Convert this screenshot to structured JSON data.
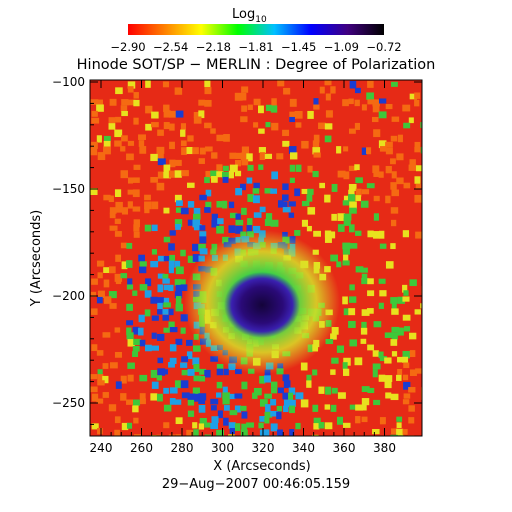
{
  "colorbar": {
    "label_base": "Log",
    "label_sub": "10",
    "tick_labels": [
      "−2.90",
      "−2.54",
      "−2.18",
      "−1.81",
      "−1.45",
      "−1.09",
      "−0.72"
    ],
    "gradient": [
      "#ff0000",
      "#ff8000",
      "#ffff00",
      "#00ff00",
      "#00c0ff",
      "#0000ff",
      "#400080",
      "#000000"
    ]
  },
  "title": "Hinode SOT/SP − MERLIN : Degree of Polarization",
  "x_axis": {
    "label": "X (Arcseconds)",
    "tick_labels": [
      "240",
      "260",
      "280",
      "300",
      "320",
      "340",
      "360",
      "380"
    ]
  },
  "y_axis": {
    "label": "Y (Arcseconds)",
    "tick_labels": [
      "−100",
      "−150",
      "−200",
      "−250"
    ]
  },
  "timestamp": "29−Aug−2007 00:46:05.159",
  "map_colors": {
    "background": "#e62a16",
    "quiet_orange": "#f56a12",
    "network_yellow": "#e8e21e",
    "network_green": "#3ec83a",
    "network_cyan": "#1ea0e6",
    "network_blue": "#1a3cd2",
    "spot_indigo": "#2a0a78",
    "spot_core": "#14043a"
  }
}
